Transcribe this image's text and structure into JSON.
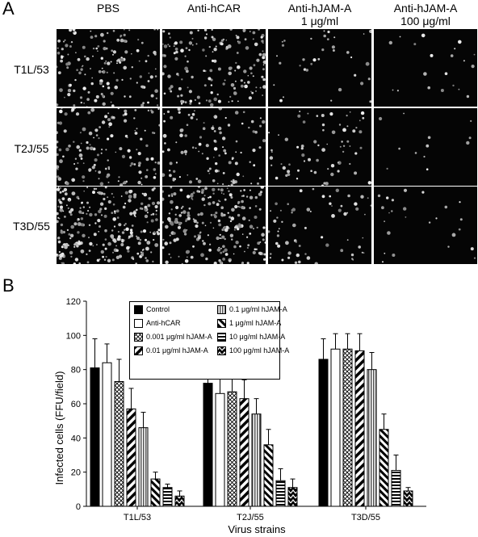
{
  "panel_a": {
    "label": "A",
    "columns": [
      "PBS",
      "Anti-hCAR",
      "Anti-hJAM-A\n1 μg/ml",
      "Anti-hJAM-A\n100 μg/ml"
    ],
    "rows": [
      "T1L/53",
      "T2J/55",
      "T3D/55"
    ]
  },
  "panel_b": {
    "label": "B"
  },
  "chart_data": {
    "type": "bar",
    "ylabel": "Infected cells (FFU/field)",
    "xlabel": "Virus strains",
    "ylim": [
      0,
      120
    ],
    "yticks": [
      0,
      20,
      40,
      60,
      80,
      100,
      120
    ],
    "categories": [
      "T1L/53",
      "T2J/55",
      "T3D/55"
    ],
    "series": [
      {
        "name": "Control",
        "pattern": "solid",
        "values": [
          81,
          72,
          86
        ],
        "errors": [
          17,
          13,
          12
        ]
      },
      {
        "name": "Anti-hCAR",
        "pattern": "open",
        "values": [
          84,
          66,
          92
        ],
        "errors": [
          11,
          13,
          9
        ]
      },
      {
        "name": "0.001 μg/ml hJAM-A",
        "pattern": "crosshatch",
        "values": [
          73,
          67,
          92
        ],
        "errors": [
          13,
          11,
          9
        ]
      },
      {
        "name": "0.01 μg/ml hJAM-A",
        "pattern": "thick-diagonal",
        "values": [
          57,
          63,
          91
        ],
        "errors": [
          12,
          11,
          10
        ]
      },
      {
        "name": "0.1 μg/ml hJAM-A",
        "pattern": "vertical",
        "values": [
          46,
          54,
          80
        ],
        "errors": [
          9,
          9,
          10
        ]
      },
      {
        "name": "1 μg/ml hJAM-A",
        "pattern": "diagonal",
        "values": [
          16,
          36,
          45
        ],
        "errors": [
          4,
          9,
          9
        ]
      },
      {
        "name": "10 μg/ml hJAM-A",
        "pattern": "horizontal",
        "values": [
          11,
          15,
          21
        ],
        "errors": [
          2,
          7,
          9
        ]
      },
      {
        "name": "100 μg/ml hJAM-A",
        "pattern": "zigzag",
        "values": [
          6,
          11,
          9
        ],
        "errors": [
          3,
          5,
          2
        ]
      }
    ]
  }
}
